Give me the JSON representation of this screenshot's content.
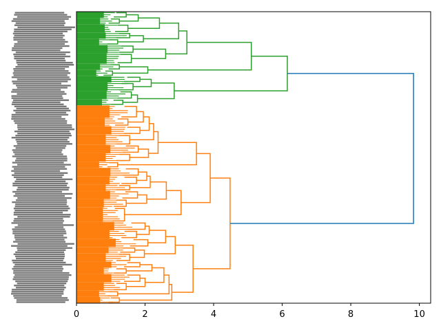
{
  "chart_data": {
    "type": "dendrogram",
    "orientation": "left",
    "title": "",
    "xlabel": "",
    "ylabel": "",
    "xlim": [
      0,
      10.33
    ],
    "xticks": [
      "0",
      "2",
      "4",
      "6",
      "8",
      "10"
    ],
    "xtick_values": [
      0,
      2,
      4,
      6,
      8,
      10
    ],
    "leaf_labels_legible": false,
    "colors": {
      "above_threshold": "#1f77b4",
      "cluster_1": "#2ca02c",
      "cluster_2": "#ff7f0e",
      "leaf_label": "#555555"
    },
    "tree": {
      "h": 9.83,
      "color": "above_threshold",
      "c": [
        {
          "h": 6.15,
          "color": "cluster_1",
          "c": [
            {
              "h": 5.1,
              "c": [
                {
                  "h": 3.22,
                  "c": [
                    {
                      "h": 2.98,
                      "c": [
                        {
                          "h": 2.42,
                          "c": [
                            {
                              "h": 1.8,
                              "c": [
                                {
                                  "h": 1.45,
                                  "f": 3
                                },
                                {
                                  "h": 1.25,
                                  "f": 3
                                }
                              ]
                            },
                            {
                              "h": 1.5,
                              "f": 4
                            }
                          ]
                        },
                        {
                          "h": 1.95,
                          "c": [
                            {
                              "h": 1.55,
                              "f": 3
                            },
                            {
                              "h": 1.2,
                              "f": 3
                            }
                          ]
                        }
                      ]
                    },
                    {
                      "h": 2.6,
                      "c": [
                        {
                          "h": 1.65,
                          "f": 4
                        },
                        {
                          "h": 1.6,
                          "f": 5
                        }
                      ]
                    }
                  ]
                },
                {
                  "h": 2.08,
                  "c": [
                    {
                      "h": 1.25,
                      "f": 3
                    },
                    {
                      "h": 1.05,
                      "f": 3
                    }
                  ]
                }
              ]
            },
            {
              "h": 2.85,
              "c": [
                {
                  "h": 2.18,
                  "c": [
                    {
                      "h": 1.85,
                      "f": 3
                    },
                    {
                      "h": 1.65,
                      "f": 4
                    }
                  ]
                },
                {
                  "h": 1.78,
                  "c": [
                    {
                      "h": 1.6,
                      "f": 4
                    },
                    {
                      "h": 1.35,
                      "f": 3
                    }
                  ]
                }
              ]
            }
          ]
        },
        {
          "h": 4.48,
          "color": "cluster_2",
          "c": [
            {
              "h": 3.9,
              "c": [
                {
                  "h": 3.5,
                  "c": [
                    {
                      "h": 2.38,
                      "c": [
                        {
                          "h": 2.25,
                          "c": [
                            {
                              "h": 2.12,
                              "c": [
                                {
                                  "h": 1.95,
                                  "c": [
                                    {
                                      "h": 1.75,
                                      "f": 6
                                    },
                                    {
                                      "h": 1.5,
                                      "f": 4
                                    }
                                  ]
                                },
                                {
                                  "h": 1.85,
                                  "f": 4
                                }
                              ]
                            },
                            {
                              "h": 1.55,
                              "f": 5
                            }
                          ]
                        },
                        {
                          "h": 2.1,
                          "c": [
                            {
                              "h": 1.8,
                              "f": 4
                            },
                            {
                              "h": 1.55,
                              "f": 4
                            }
                          ]
                        }
                      ]
                    },
                    {
                      "h": 1.2,
                      "f": 3
                    }
                  ]
                },
                {
                  "h": 3.05,
                  "c": [
                    {
                      "h": 2.62,
                      "c": [
                        {
                          "h": 2.15,
                          "c": [
                            {
                              "h": 2.05,
                              "c": [
                                {
                                  "h": 1.8,
                                  "f": 4
                                },
                                {
                                  "h": 1.75,
                                  "f": 4
                                }
                              ]
                            },
                            {
                              "h": 1.55,
                              "f": 3
                            }
                          ]
                        },
                        {
                          "h": 2.05,
                          "c": [
                            {
                              "h": 1.78,
                              "f": 4
                            },
                            {
                              "h": 1.45,
                              "f": 4
                            }
                          ]
                        }
                      ]
                    },
                    {
                      "h": 1.4,
                      "f": 7
                    }
                  ]
                }
              ]
            },
            {
              "h": 3.4,
              "c": [
                {
                  "h": 2.88,
                  "c": [
                    {
                      "h": 2.6,
                      "c": [
                        {
                          "h": 2.12,
                          "c": [
                            {
                              "h": 2.0,
                              "f": 4
                            },
                            {
                              "h": 1.75,
                              "f": 4
                            }
                          ]
                        },
                        {
                          "h": 2.08,
                          "f": 4
                        }
                      ]
                    },
                    {
                      "h": 1.98,
                      "c": [
                        {
                          "h": 1.7,
                          "f": 3
                        },
                        {
                          "h": 1.55,
                          "f": 4
                        }
                      ]
                    }
                  ]
                },
                {
                  "h": 2.78,
                  "c": [
                    {
                      "h": 2.7,
                      "c": [
                        {
                          "h": 2.55,
                          "c": [
                            {
                              "h": 2.2,
                              "c": [
                                {
                                  "h": 1.85,
                                  "f": 3
                                },
                                {
                                  "h": 1.45,
                                  "f": 3
                                }
                              ]
                            },
                            {
                              "h": 2.0,
                              "c": [
                                {
                                  "h": 1.85,
                                  "f": 4
                                },
                                {
                                  "h": 1.45,
                                  "f": 4
                                }
                              ]
                            }
                          ]
                        },
                        {
                          "h": 1.2,
                          "f": 3
                        }
                      ]
                    },
                    {
                      "h": 1.25,
                      "f": 3
                    }
                  ]
                }
              ]
            }
          ]
        }
      ]
    }
  }
}
